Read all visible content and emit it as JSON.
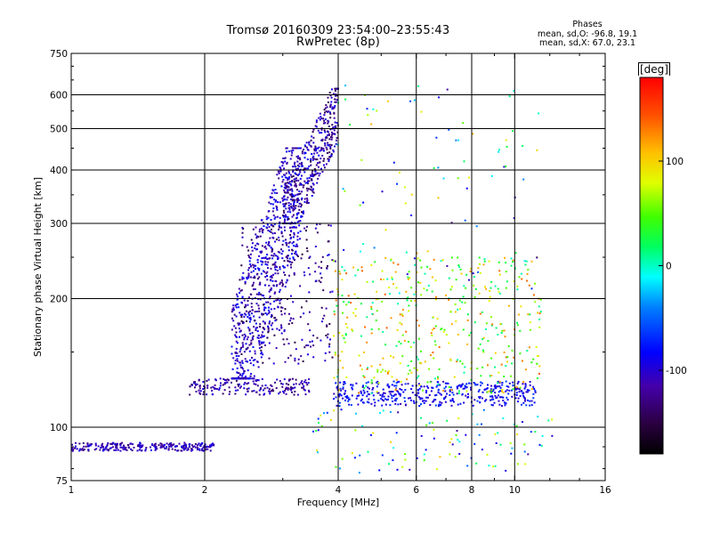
{
  "header": {
    "title_line1": "Tromsø 20160309 23:54:00–23:55:43",
    "title_line2": "RwPretec (8p)"
  },
  "stats": {
    "heading": "Phases",
    "line1": "mean, sd,O: -96.8, 19.1",
    "line2": "mean, sd,X:  67.0, 23.1"
  },
  "colorbar": {
    "unit": "[deg]",
    "ticks": [
      {
        "value": 100,
        "label": "100"
      },
      {
        "value": 0,
        "label": "0"
      },
      {
        "value": -100,
        "label": "-100"
      }
    ],
    "range": [
      -180,
      180
    ]
  },
  "chart_data": {
    "type": "scatter",
    "xlabel": "Frequency [MHz]",
    "ylabel": "Stationary phase Virtual Height [km]",
    "xscale": "log",
    "yscale": "log",
    "xlim": [
      1,
      16
    ],
    "ylim": [
      75,
      750
    ],
    "grid": true,
    "xticks": [
      1,
      2,
      4,
      6,
      8,
      10,
      16
    ],
    "xticklabels": [
      "1",
      "2",
      "4",
      "6",
      "8",
      "10",
      "16"
    ],
    "xgrid": [
      2,
      4,
      6,
      8,
      10
    ],
    "yticks": [
      75,
      100,
      200,
      300,
      400,
      500,
      600,
      750
    ],
    "yticklabels": [
      "75",
      "100",
      "200",
      "300",
      "400",
      "500",
      "600",
      "750"
    ],
    "ygrid": [
      100,
      200,
      300,
      400,
      500,
      600
    ],
    "color_variable": "phase [deg]",
    "color_range": [
      -180,
      180
    ],
    "clusters": [
      {
        "desc": "low E-layer trace",
        "x": [
          1.0,
          2.1
        ],
        "h": [
          88,
          92
        ],
        "phase": [
          -135,
          -85
        ],
        "n": 260
      },
      {
        "desc": "F trace foot",
        "x": [
          1.85,
          3.5
        ],
        "h": [
          119,
          130
        ],
        "phase": [
          -140,
          -90
        ],
        "n": 180
      },
      {
        "desc": "F1 cusp rising trace",
        "x": [
          2.3,
          3.3
        ],
        "h": [
          130,
          450
        ],
        "phase": [
          -130,
          -75
        ],
        "n": 700
      },
      {
        "desc": "upper F2 trace",
        "x": [
          3.0,
          4.0
        ],
        "h": [
          300,
          620
        ],
        "phase": [
          -150,
          -80
        ],
        "n": 420
      },
      {
        "desc": "mid band trace",
        "x": [
          2.4,
          3.9
        ],
        "h": [
          140,
          300
        ],
        "phase": [
          -155,
          -90
        ],
        "n": 260
      },
      {
        "desc": "X-mode trace near 120 km",
        "x": [
          3.9,
          11.2
        ],
        "h": [
          112,
          128
        ],
        "phase": [
          -110,
          -60
        ],
        "n": 420
      },
      {
        "desc": "X-mode scatter",
        "x": [
          3.9,
          11.5
        ],
        "h": [
          120,
          250
        ],
        "phase": [
          0,
          140
        ],
        "n": 440
      },
      {
        "desc": "sparse high scatter",
        "x": [
          3.9,
          11.5
        ],
        "h": [
          200,
          640
        ],
        "phase": [
          -120,
          120
        ],
        "n": 90
      },
      {
        "desc": "low scatter",
        "x": [
          3.5,
          12.5
        ],
        "h": [
          78,
          110
        ],
        "phase": [
          -120,
          110
        ],
        "n": 110
      }
    ]
  }
}
